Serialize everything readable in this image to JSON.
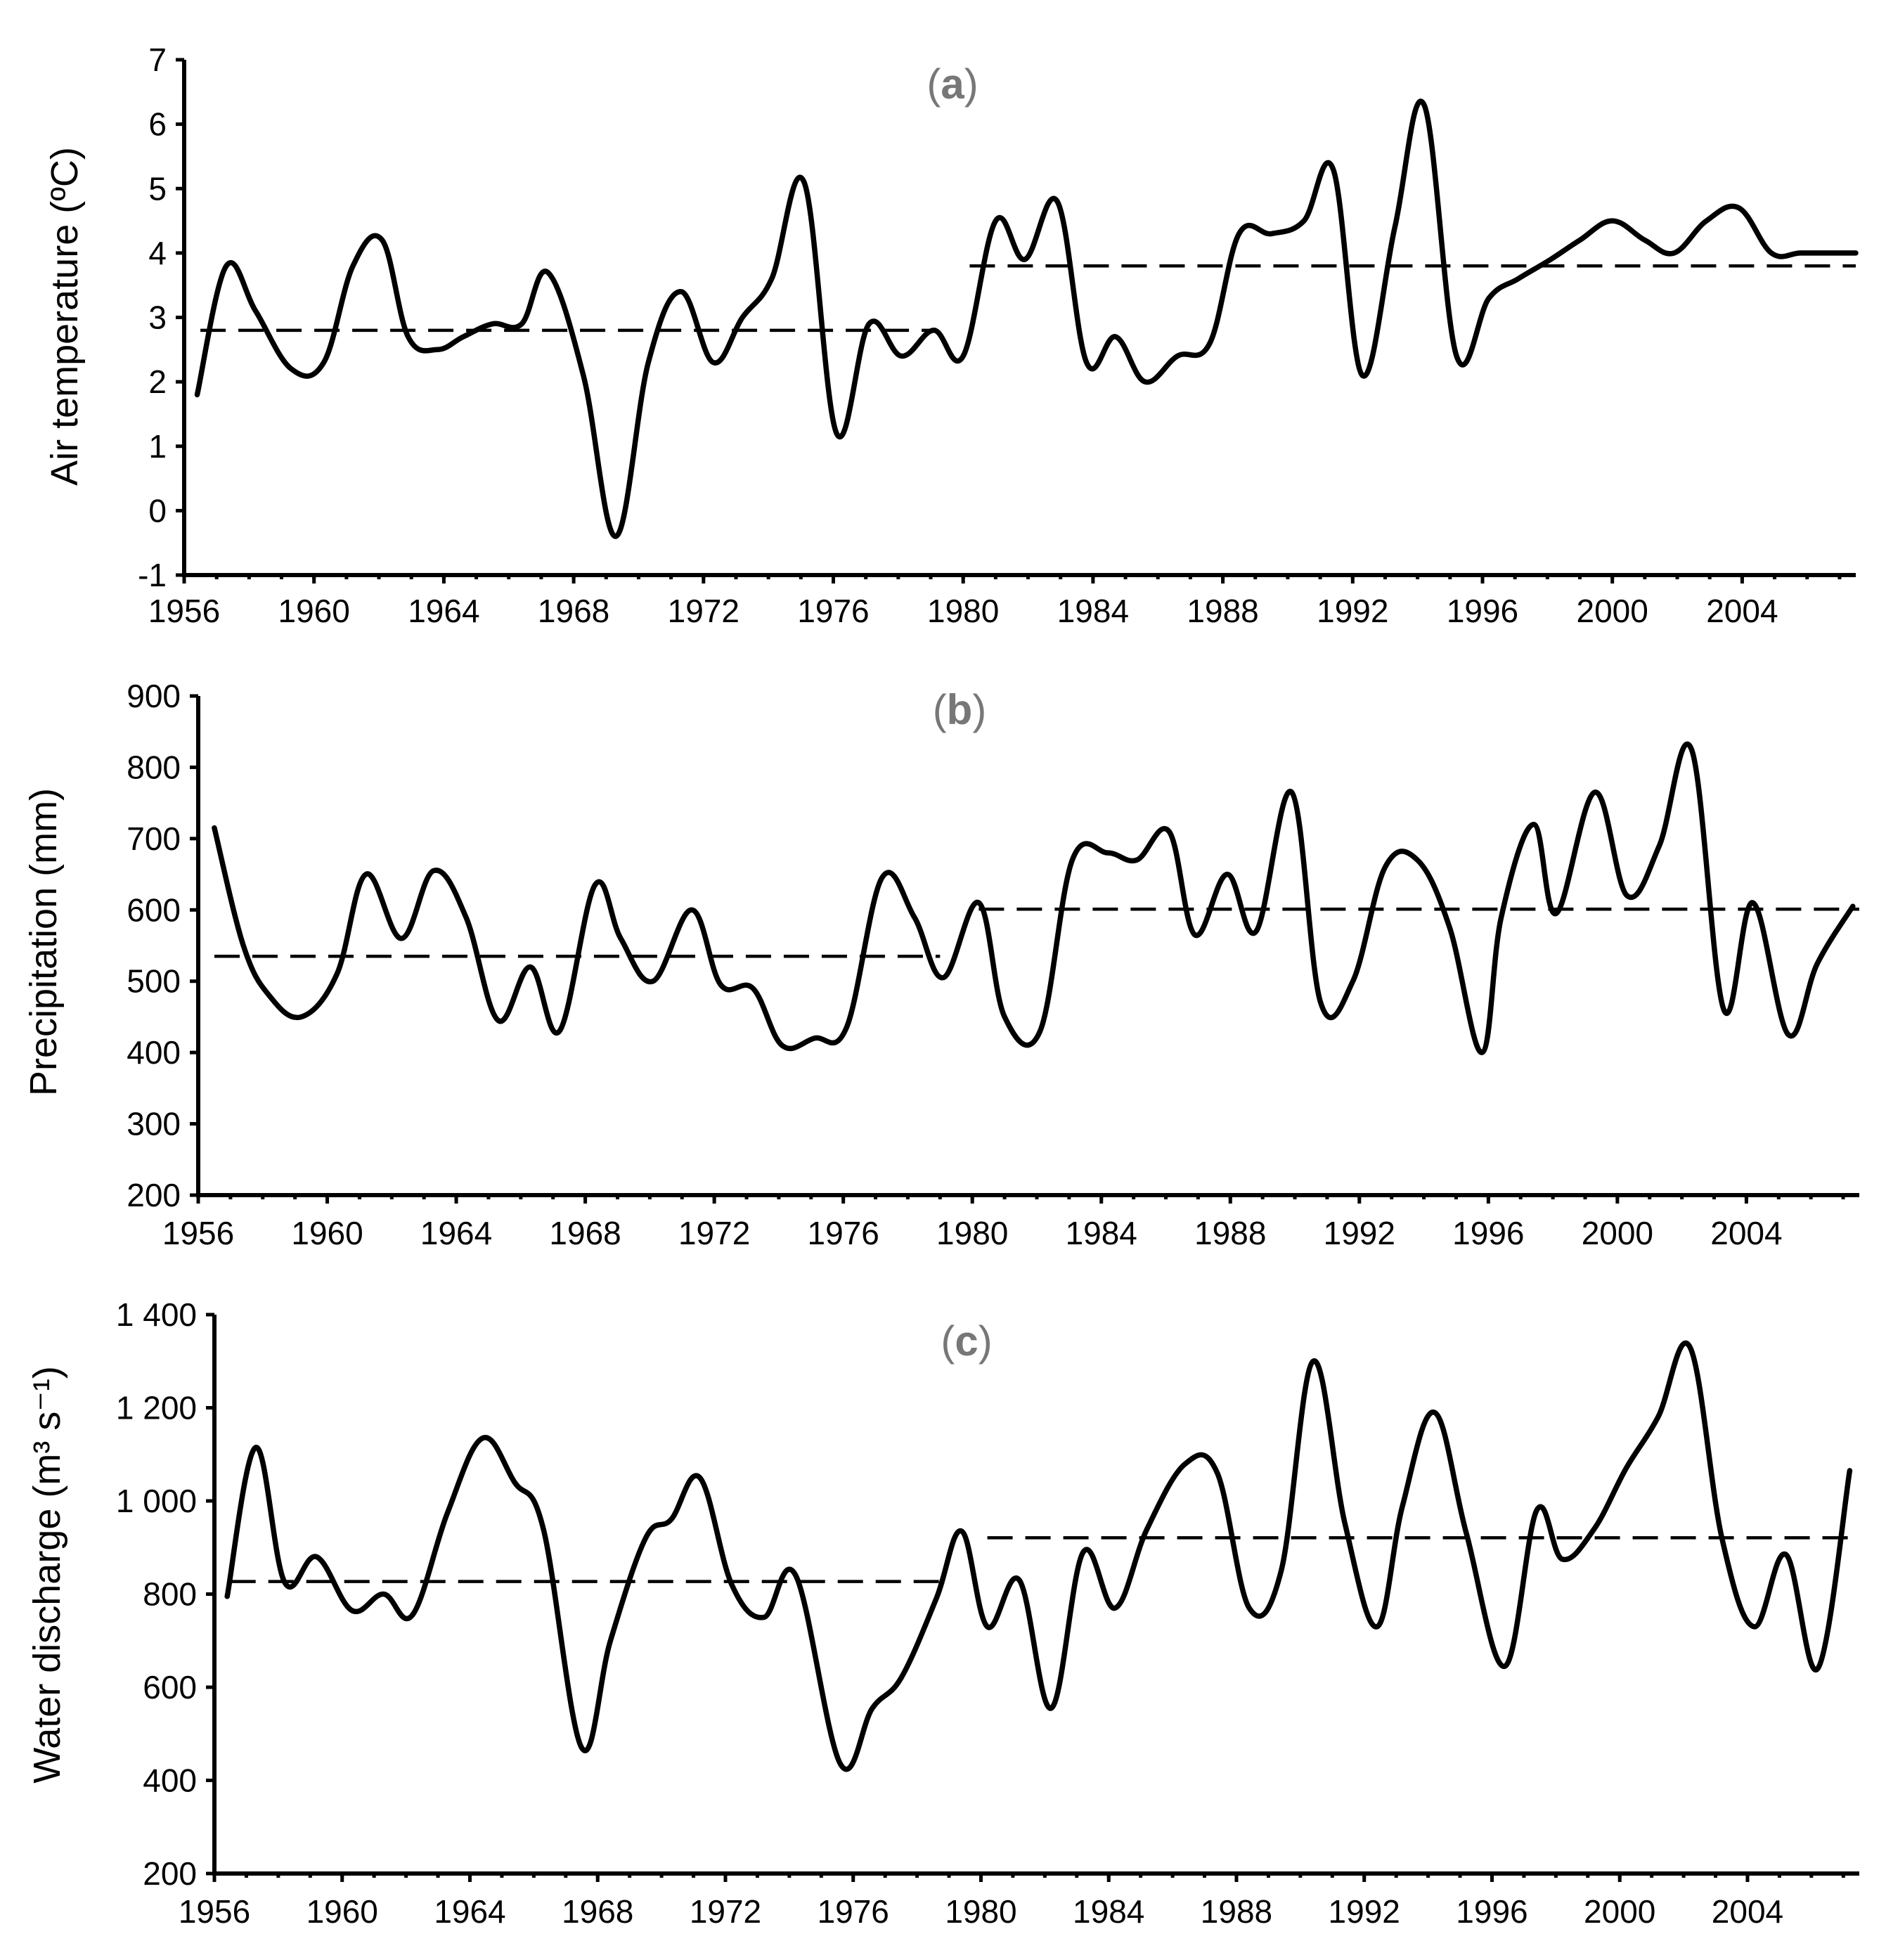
{
  "chart_data": [
    {
      "type": "line",
      "panel_label": "a",
      "ylabel": "Air temperature (ºC)",
      "xlim": [
        1956,
        2007.5
      ],
      "ylim": [
        -1,
        7
      ],
      "x_ticks": [
        "1956",
        "1960",
        "1964",
        "1968",
        "1972",
        "1976",
        "1980",
        "1984",
        "1988",
        "1992",
        "1996",
        "2000",
        "2004"
      ],
      "y_ticks": [
        "-1",
        "0",
        "1",
        "2",
        "3",
        "4",
        "5",
        "6",
        "7"
      ],
      "series": [
        {
          "name": "Air temperature",
          "x": [
            1956.4,
            1957.3,
            1958.2,
            1959.3,
            1960.3,
            1961.2,
            1962.1,
            1962.9,
            1963.8,
            1964.6,
            1965.5,
            1966.4,
            1967.2,
            1968.3,
            1969.3,
            1970.3,
            1971.3,
            1972.3,
            1973.2,
            1974.1,
            1975.1,
            1976.1,
            1977.1,
            1978.1,
            1979.1,
            1980.0,
            1981.0,
            1981.9,
            1982.9,
            1983.8,
            1984.7,
            1985.6,
            1986.6,
            1987.6,
            1988.5,
            1989.5,
            1990.5,
            1991.4,
            1992.3,
            1993.3,
            1994.2,
            1995.2,
            1996.2,
            1997.1,
            1998.1,
            1999.0,
            2000.0,
            2001.0,
            2001.9,
            2002.9,
            2003.9,
            2004.9,
            2005.8,
            2006.8,
            2007.5
          ],
          "y": [
            1.8,
            3.8,
            3.1,
            2.2,
            2.3,
            3.8,
            4.2,
            2.7,
            2.5,
            2.7,
            2.9,
            2.9,
            3.7,
            2.1,
            -0.4,
            2.3,
            3.4,
            2.3,
            3.0,
            3.6,
            5.1,
            1.2,
            2.9,
            2.4,
            2.8,
            2.4,
            4.5,
            3.9,
            4.8,
            2.3,
            2.7,
            2.0,
            2.4,
            2.6,
            4.3,
            4.3,
            4.5,
            5.3,
            2.1,
            4.4,
            6.3,
            2.4,
            3.3,
            3.6,
            3.9,
            4.2,
            4.5,
            4.2,
            4.0,
            4.5,
            4.7,
            4.0,
            4.0,
            4.0,
            4.0
          ]
        }
      ],
      "means": [
        {
          "from": 1956.5,
          "to": 1979.0,
          "value": 2.8
        },
        {
          "from": 1980.2,
          "to": 2007.5,
          "value": 3.8
        }
      ]
    },
    {
      "type": "line",
      "panel_label": "b",
      "ylabel": "Precipitation (mm)",
      "xlim": [
        1956,
        2007.5
      ],
      "ylim": [
        200,
        900
      ],
      "x_ticks": [
        "1956",
        "1960",
        "1964",
        "1968",
        "1972",
        "1976",
        "1980",
        "1984",
        "1988",
        "1992",
        "1996",
        "2000",
        "2004"
      ],
      "y_ticks": [
        "200",
        "300",
        "400",
        "500",
        "600",
        "700",
        "800",
        "900"
      ],
      "series": [
        {
          "name": "Precipitation",
          "x": [
            1956.5,
            1957.4,
            1958.2,
            1959.2,
            1960.3,
            1961.2,
            1962.3,
            1963.3,
            1964.3,
            1965.3,
            1966.3,
            1967.2,
            1968.3,
            1969.1,
            1970.1,
            1971.3,
            1972.2,
            1973.2,
            1974.1,
            1975.1,
            1976.1,
            1977.2,
            1978.2,
            1979.1,
            1980.2,
            1981.0,
            1982.1,
            1983.1,
            1984.2,
            1985.1,
            1986.1,
            1986.9,
            1987.9,
            1988.8,
            1989.9,
            1990.8,
            1991.8,
            1992.8,
            1993.8,
            1994.8,
            1995.8,
            1996.4,
            1997.4,
            1998.1,
            1999.3,
            2000.3,
            2001.3,
            2002.3,
            2003.3,
            2004.2,
            2005.3,
            2006.2,
            2007.3
          ],
          "y": [
            715,
            550,
            480,
            450,
            510,
            650,
            560,
            655,
            590,
            445,
            520,
            430,
            635,
            560,
            500,
            600,
            495,
            490,
            410,
            420,
            435,
            645,
            590,
            505,
            610,
            450,
            430,
            670,
            680,
            670,
            710,
            565,
            650,
            570,
            765,
            470,
            500,
            660,
            670,
            575,
            400,
            590,
            720,
            595,
            765,
            620,
            690,
            825,
            460,
            610,
            425,
            525,
            605
          ]
        }
      ],
      "means": [
        {
          "from": 1956.5,
          "to": 1979.0,
          "value": 535
        },
        {
          "from": 1980.2,
          "to": 2007.5,
          "value": 601
        }
      ]
    },
    {
      "type": "line",
      "panel_label": "c",
      "ylabel": "Water discharge (m³ s⁻¹)",
      "xlim": [
        1956,
        2007.5
      ],
      "ylim": [
        200,
        1400
      ],
      "x_ticks": [
        "1956",
        "1960",
        "1964",
        "1968",
        "1972",
        "1976",
        "1980",
        "1984",
        "1988",
        "1992",
        "1996",
        "2000",
        "2004"
      ],
      "y_ticks": [
        "200",
        "400",
        "600",
        "800",
        "1 000",
        "1 200",
        "1 400"
      ],
      "series": [
        {
          "name": "Water discharge",
          "x": [
            1956.4,
            1957.3,
            1958.2,
            1959.2,
            1960.3,
            1961.3,
            1962.2,
            1963.3,
            1964.4,
            1965.4,
            1966.3,
            1967.5,
            1968.4,
            1969.5,
            1970.3,
            1971.2,
            1972.2,
            1973.2,
            1974.2,
            1975.6,
            1976.6,
            1977.5,
            1978.6,
            1979.4,
            1980.2,
            1981.2,
            1982.2,
            1983.2,
            1984.2,
            1985.2,
            1986.4,
            1987.4,
            1988.4,
            1989.4,
            1990.4,
            1991.4,
            1992.4,
            1993.2,
            1994.2,
            1995.2,
            1996.4,
            1997.4,
            1998.2,
            1999.2,
            2000.2,
            2001.2,
            2002.2,
            2003.2,
            2004.2,
            2005.2,
            2006.2,
            2007.2
          ],
          "y": [
            795,
            1115,
            825,
            880,
            765,
            800,
            755,
            975,
            1135,
            1040,
            940,
            470,
            700,
            920,
            960,
            1050,
            820,
            750,
            840,
            435,
            555,
            620,
            790,
            935,
            730,
            830,
            555,
            890,
            770,
            940,
            1080,
            1060,
            770,
            850,
            1300,
            950,
            730,
            990,
            1190,
            930,
            645,
            980,
            875,
            940,
            1070,
            1180,
            1330,
            920,
            730,
            885,
            640,
            1065
          ]
        }
      ],
      "means": [
        {
          "from": 1956.5,
          "to": 1979.0,
          "value": 827
        },
        {
          "from": 1980.2,
          "to": 2007.5,
          "value": 921
        }
      ]
    }
  ]
}
